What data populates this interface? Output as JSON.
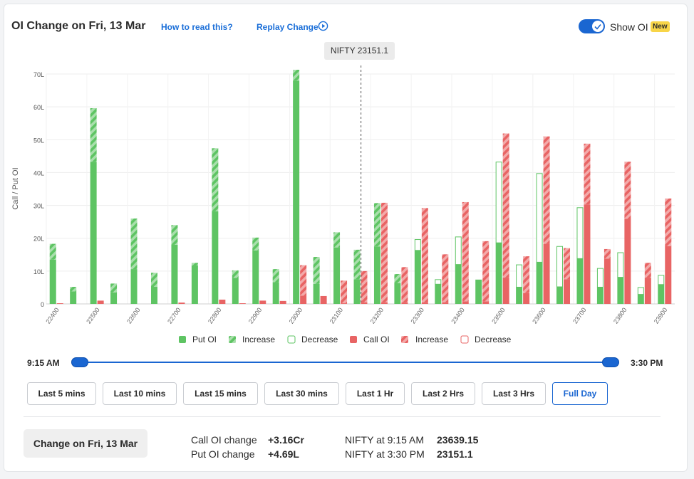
{
  "header": {
    "title": "OI Change on Fri, 13 Mar",
    "how_to_read": "How to read this?",
    "replay": "Replay Change",
    "show_oi_label": "Show OI",
    "new_badge": "New"
  },
  "tooltip": "NIFTY 23151.1",
  "chart_data": {
    "type": "bar",
    "ylabel": "Call / Put OI",
    "ylim": [
      0,
      70
    ],
    "yticks": [
      "0",
      "10L",
      "20L",
      "30L",
      "40L",
      "50L",
      "60L",
      "70L"
    ],
    "strikes": [
      22400,
      22450,
      22500,
      22550,
      22600,
      22650,
      22700,
      22750,
      22800,
      22850,
      22900,
      22950,
      23000,
      23050,
      23100,
      23150,
      23200,
      23250,
      23300,
      23350,
      23400,
      23450,
      23500,
      23550,
      23600,
      23650,
      23700,
      23750,
      23800,
      23850,
      23900
    ],
    "tick_labels": [
      "22400",
      "22500",
      "22600",
      "22700",
      "22800",
      "22900",
      "23000",
      "23100",
      "23200",
      "23300",
      "23400",
      "23500",
      "23600",
      "23700",
      "23800",
      "23900"
    ],
    "spot": 23151.1,
    "put": {
      "base": [
        13.5,
        3.8,
        43.3,
        3.5,
        10.6,
        5.2,
        18.0,
        11.7,
        28.2,
        7.9,
        16.3,
        6.6,
        68.0,
        6.1,
        17.2,
        7.5,
        17.5,
        6.3,
        16.3,
        6.0,
        12.0,
        7.4,
        18.6,
        5.1,
        12.7,
        5.2,
        13.8,
        5.1,
        8.1,
        2.9,
        5.9
      ],
      "increase": [
        4.8,
        1.4,
        16.3,
        2.7,
        15.4,
        4.3,
        6.0,
        0.8,
        19.2,
        2.3,
        3.9,
        4.0,
        3.3,
        8.2,
        4.6,
        9.0,
        13.2,
        2.8,
        0,
        0,
        0,
        0,
        0,
        0,
        0,
        0,
        0,
        0,
        0,
        0,
        0
      ],
      "decrease": [
        0,
        0,
        0,
        0,
        0,
        0,
        0,
        0,
        0,
        0,
        0,
        0,
        0,
        0,
        0,
        0,
        0,
        0,
        3.3,
        1.4,
        8.4,
        0,
        24.6,
        6.8,
        27.0,
        12.3,
        15.5,
        5.7,
        7.5,
        2.1,
        2.8
      ]
    },
    "call": {
      "base": [
        0.2,
        0,
        1.0,
        0,
        0,
        0,
        0.4,
        0,
        1.3,
        0.2,
        1.0,
        0.9,
        2.5,
        2.4,
        0.2,
        0.5,
        0.5,
        0.5,
        0.5,
        0.5,
        0.8,
        0.8,
        8.0,
        3.3,
        18.3,
        7.5,
        30.3,
        13.8,
        25.9,
        8.0,
        17.6
      ],
      "increase": [
        0,
        0,
        0,
        0,
        0,
        0,
        0,
        0,
        0,
        0,
        0,
        0,
        9.3,
        0,
        6.9,
        9.5,
        30.3,
        10.7,
        28.7,
        14.6,
        30.2,
        18.3,
        43.9,
        11.2,
        32.7,
        9.5,
        18.5,
        2.9,
        17.4,
        4.5,
        14.5
      ],
      "decrease": [
        0,
        0,
        0,
        0,
        0,
        0,
        0,
        0,
        0,
        0,
        0,
        0,
        0,
        0,
        0,
        0,
        0,
        0,
        0,
        0,
        0,
        0,
        0,
        0,
        0,
        0,
        0,
        0,
        0,
        0,
        0
      ]
    },
    "legend": [
      "Put OI",
      "Increase",
      "Decrease",
      "Call OI",
      "Increase",
      "Decrease"
    ],
    "colors": {
      "put": "#5ec463",
      "put_light": "#a9dfac",
      "call": "#e86464",
      "call_light": "#f3aaaa"
    }
  },
  "slider": {
    "start": "9:15 AM",
    "end": "3:30 PM"
  },
  "buttons": [
    "Last 5 mins",
    "Last 10 mins",
    "Last 15 mins",
    "Last 30 mins",
    "Last 1 Hr",
    "Last 2 Hrs",
    "Last 3 Hrs",
    "Full Day"
  ],
  "summary": {
    "pill": "Change on Fri, 13 Mar",
    "call_label": "Call OI change",
    "call_value": "+3.16Cr",
    "put_label": "Put OI change",
    "put_value": "+4.69L",
    "nifty_open_label": "NIFTY at 9:15 AM",
    "nifty_open_value": "23639.15",
    "nifty_close_label": "NIFTY at 3:30 PM",
    "nifty_close_value": "23151.1"
  }
}
